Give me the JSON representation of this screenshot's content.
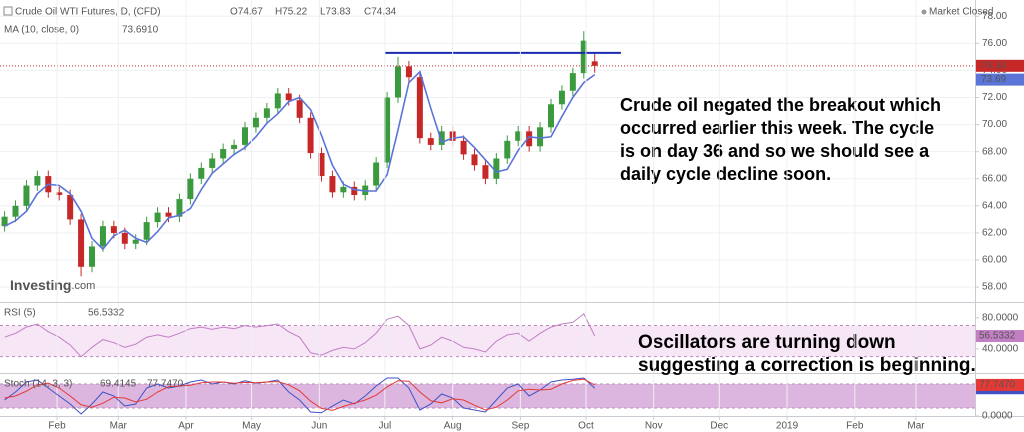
{
  "chart_data": [
    {
      "type": "candlestick",
      "title": "Crude Oil WTI Futures, D, (CFD)",
      "ohlc_labels": [
        "O74.67",
        "H75.22",
        "L73.83",
        "C74.34"
      ],
      "status": "Market Closed",
      "logo": [
        "Investing",
        ".com"
      ],
      "annotation": [
        "Crude oil negated the breakout which",
        "occurred earlier this week. The cycle",
        "is on day 36 and so we should see a",
        "daily cycle decline soon."
      ],
      "x": [
        8,
        13,
        18,
        23,
        28,
        33,
        38,
        43,
        48,
        53,
        58,
        63,
        68,
        73,
        78,
        83,
        88,
        93,
        98,
        103,
        108,
        113,
        118,
        123,
        128,
        133,
        138,
        143,
        148,
        153,
        158,
        163,
        168,
        173,
        178,
        183,
        188,
        193,
        198,
        203,
        208,
        213,
        218,
        223,
        228,
        233,
        238,
        243,
        248,
        253,
        258,
        263,
        268,
        273,
        278
      ],
      "open": [
        62.5,
        63.2,
        64.0,
        65.5,
        66.2,
        65.0,
        64.8,
        63.0,
        59.5,
        61.0,
        62.5,
        62.0,
        61.2,
        61.5,
        62.8,
        63.5,
        63.2,
        64.5,
        66.0,
        66.8,
        67.5,
        68.2,
        68.5,
        69.8,
        70.5,
        71.2,
        72.3,
        71.8,
        70.5,
        67.9,
        66.2,
        65.0,
        65.4,
        64.8,
        65.5,
        67.2,
        72.0,
        74.3,
        73.5,
        69.0,
        68.5,
        69.5,
        68.8,
        67.8,
        67.0,
        66.0,
        67.5,
        68.8,
        69.5,
        68.4,
        69.8,
        71.5,
        72.5,
        73.8,
        74.67
      ],
      "high": [
        63.6,
        64.4,
        65.9,
        66.6,
        66.6,
        65.4,
        65.2,
        63.4,
        61.4,
        62.9,
        62.9,
        62.4,
        61.9,
        63.2,
        63.9,
        63.9,
        64.9,
        66.4,
        67.2,
        67.9,
        68.6,
        68.9,
        70.2,
        70.9,
        71.6,
        72.7,
        72.7,
        72.2,
        70.9,
        68.3,
        66.6,
        65.8,
        65.8,
        65.9,
        67.6,
        72.4,
        75.0,
        74.7,
        73.9,
        69.4,
        69.9,
        69.9,
        69.2,
        68.2,
        67.4,
        67.9,
        69.2,
        69.9,
        69.9,
        70.2,
        71.9,
        72.9,
        74.2,
        76.9,
        75.22
      ],
      "low": [
        62.1,
        62.8,
        63.6,
        65.1,
        64.6,
        64.4,
        62.6,
        58.8,
        59.1,
        60.6,
        61.6,
        60.8,
        60.8,
        61.1,
        62.4,
        62.8,
        62.8,
        64.1,
        65.6,
        66.4,
        67.1,
        67.8,
        68.1,
        69.4,
        70.1,
        70.8,
        71.4,
        70.1,
        67.5,
        65.8,
        64.6,
        64.6,
        64.4,
        64.4,
        65.1,
        66.8,
        71.6,
        73.1,
        68.6,
        68.1,
        68.1,
        68.4,
        67.4,
        66.6,
        65.6,
        65.6,
        67.1,
        68.4,
        68.0,
        68.0,
        69.4,
        71.1,
        72.1,
        73.4,
        73.83
      ],
      "close": [
        63.2,
        64.0,
        65.5,
        66.2,
        65.0,
        64.8,
        63.0,
        59.5,
        61.0,
        62.5,
        62.0,
        61.2,
        61.5,
        62.8,
        63.5,
        63.2,
        64.5,
        66.0,
        66.8,
        67.5,
        68.2,
        68.5,
        69.8,
        70.5,
        71.2,
        72.3,
        71.8,
        70.5,
        67.9,
        66.2,
        65.0,
        65.4,
        64.8,
        65.5,
        67.2,
        72.0,
        74.3,
        73.5,
        69.0,
        68.5,
        69.5,
        68.8,
        67.8,
        67.0,
        66.0,
        67.5,
        68.8,
        69.5,
        68.4,
        69.8,
        71.5,
        72.5,
        73.8,
        76.2,
        74.34
      ],
      "up_color": "#3c9a3e",
      "down_color": "#c62828",
      "series": [
        {
          "name": "MA (10, close, 0)",
          "color": "#5b74d8",
          "last_label": "73.6910",
          "tag_label": "73.69",
          "values": [
            62.5,
            62.9,
            63.6,
            64.9,
            65.6,
            65.5,
            64.9,
            63.6,
            61.6,
            60.8,
            61.8,
            62.2,
            61.6,
            61.3,
            62.1,
            63.1,
            63.3,
            63.8,
            65.2,
            66.4,
            67.1,
            67.8,
            68.3,
            69.1,
            70.1,
            70.8,
            71.7,
            72.0,
            71.1,
            69.2,
            67.0,
            65.6,
            65.2,
            65.1,
            65.1,
            66.3,
            69.6,
            73.1,
            73.9,
            71.2,
            68.7,
            69.0,
            69.1,
            68.3,
            67.4,
            66.5,
            66.7,
            68.1,
            69.1,
            69.0,
            69.1,
            70.6,
            72.0,
            73.1,
            73.691
          ]
        }
      ],
      "resistance": {
        "value": 75.3,
        "from": 182,
        "to": 290,
        "color": "#1a2bb0"
      },
      "xlim": [
        5.9,
        452
      ],
      "ylim": [
        56.9,
        79.2
      ],
      "yticks": [
        {
          "value": 58,
          "label": "58.00"
        },
        {
          "value": 60,
          "label": "60.00"
        },
        {
          "value": 62,
          "label": "62.00"
        },
        {
          "value": 64,
          "label": "64.00"
        },
        {
          "value": 66,
          "label": "66.00"
        },
        {
          "value": 68,
          "label": "68.00"
        },
        {
          "value": 70,
          "label": "70.00"
        },
        {
          "value": 72,
          "label": "72.00"
        },
        {
          "value": 74,
          "label": "74.00"
        },
        {
          "value": 76,
          "label": "76.00"
        },
        {
          "value": 78,
          "label": "78.00"
        }
      ],
      "grid": true
    },
    {
      "type": "line",
      "title": "RSI (5)",
      "annotation": [
        "Oscillators are turning down",
        "suggesting a correction is beginning."
      ],
      "x": [
        8,
        13,
        18,
        23,
        28,
        33,
        38,
        43,
        48,
        53,
        58,
        63,
        68,
        73,
        78,
        83,
        88,
        93,
        98,
        103,
        108,
        113,
        118,
        123,
        128,
        133,
        138,
        143,
        148,
        153,
        158,
        163,
        168,
        173,
        178,
        183,
        188,
        193,
        198,
        203,
        208,
        213,
        218,
        223,
        228,
        233,
        238,
        243,
        248,
        253,
        258,
        263,
        268,
        273,
        278
      ],
      "series": [
        {
          "name": "RSI",
          "color": "#c27fc4",
          "last_label": "56.5332",
          "values": [
            55,
            60,
            68,
            72,
            62,
            55,
            45,
            30,
            42,
            52,
            48,
            42,
            46,
            55,
            58,
            55,
            60,
            66,
            68,
            65,
            68,
            66,
            70,
            68,
            70,
            72,
            62,
            55,
            35,
            32,
            38,
            42,
            40,
            48,
            60,
            78,
            82,
            70,
            40,
            45,
            55,
            50,
            42,
            40,
            36,
            50,
            58,
            60,
            50,
            60,
            68,
            72,
            74,
            85,
            56.5332
          ]
        }
      ],
      "band": [
        30,
        70
      ],
      "band_color": "#f6e6f6",
      "xlim": [
        5.9,
        452
      ],
      "ylim": [
        9,
        99
      ],
      "yticks": [
        {
          "value": 80,
          "label": "80.0000"
        },
        {
          "value": 40,
          "label": "40.0000"
        }
      ]
    },
    {
      "type": "line",
      "title": "Stoch (14, 3, 3)",
      "x": [
        8,
        13,
        18,
        23,
        28,
        33,
        38,
        43,
        48,
        53,
        58,
        63,
        68,
        73,
        78,
        83,
        88,
        93,
        98,
        103,
        108,
        113,
        118,
        123,
        128,
        133,
        138,
        143,
        148,
        153,
        158,
        163,
        168,
        173,
        178,
        183,
        188,
        193,
        198,
        203,
        208,
        213,
        218,
        223,
        228,
        233,
        238,
        243,
        248,
        253,
        258,
        263,
        268,
        273,
        278
      ],
      "series": [
        {
          "name": "%K",
          "color": "#3f51c5",
          "last_label": "69.4145",
          "values": [
            40,
            60,
            85,
            90,
            70,
            50,
            30,
            5,
            30,
            60,
            50,
            25,
            30,
            70,
            80,
            70,
            75,
            85,
            90,
            80,
            85,
            80,
            88,
            82,
            85,
            90,
            60,
            40,
            10,
            8,
            25,
            40,
            30,
            50,
            75,
            95,
            95,
            70,
            15,
            30,
            55,
            45,
            20,
            15,
            10,
            40,
            70,
            80,
            50,
            65,
            85,
            90,
            92,
            95,
            69.4145
          ]
        },
        {
          "name": "%D",
          "color": "#e53935",
          "last_label": "77.7470",
          "values": [
            45,
            50,
            62,
            78,
            82,
            70,
            50,
            28,
            22,
            32,
            47,
            45,
            35,
            42,
            60,
            73,
            75,
            77,
            83,
            85,
            85,
            82,
            84,
            83,
            85,
            86,
            78,
            63,
            37,
            19,
            14,
            24,
            32,
            40,
            52,
            73,
            88,
            87,
            60,
            38,
            33,
            43,
            40,
            27,
            15,
            22,
            40,
            63,
            67,
            65,
            67,
            80,
            89,
            92,
            77.747
          ]
        }
      ],
      "band": [
        20,
        80
      ],
      "band_color": "#dcb6df",
      "xlim": [
        5.9,
        452
      ],
      "ylim": [
        0,
        105
      ],
      "yticks": [
        {
          "value": 0,
          "label": "0.0000"
        }
      ],
      "xticks": [
        {
          "value": 32,
          "label": "Feb"
        },
        {
          "value": 60,
          "label": "Mar"
        },
        {
          "value": 91,
          "label": "Apr"
        },
        {
          "value": 121,
          "label": "May"
        },
        {
          "value": 152,
          "label": "Jun"
        },
        {
          "value": 182,
          "label": "Jul"
        },
        {
          "value": 213,
          "label": "Aug"
        },
        {
          "value": 244,
          "label": "Sep"
        },
        {
          "value": 274,
          "label": "Oct"
        },
        {
          "value": 305,
          "label": "Nov"
        },
        {
          "value": 335,
          "label": "Dec"
        },
        {
          "value": 366,
          "label": "2019"
        },
        {
          "value": 397,
          "label": "Feb"
        },
        {
          "value": 425,
          "label": "Mar"
        }
      ]
    }
  ]
}
